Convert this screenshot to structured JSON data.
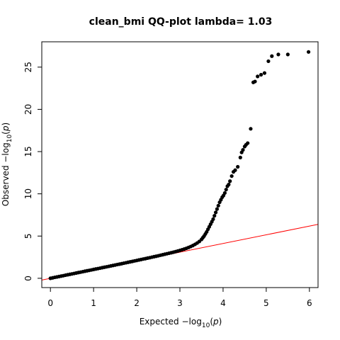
{
  "chart_data": {
    "type": "scatter",
    "title": "clean_bmi QQ-plot lambda= 1.03",
    "xlabel": {
      "prefix": "Expected  ",
      "math": "−log",
      "subscript": "10",
      "open": "(",
      "var": "p",
      "close": ")"
    },
    "ylabel": {
      "prefix": "Observed  ",
      "math": "−log",
      "subscript": "10",
      "open": "(",
      "var": "p",
      "close": ")"
    },
    "xlim": [
      -0.2,
      6.2
    ],
    "ylim": [
      -1.1,
      28.0
    ],
    "xticks": [
      "0",
      "1",
      "2",
      "3",
      "4",
      "5",
      "6"
    ],
    "yticks": [
      "0",
      "5",
      "10",
      "15",
      "20",
      "25"
    ],
    "grid": false,
    "point_color": "#000000",
    "line_color": "#ff0000",
    "reference_line": {
      "slope": 1.03,
      "intercept": 0
    },
    "points": [
      [
        0.0,
        0.0
      ],
      [
        0.05,
        0.05
      ],
      [
        0.1,
        0.11
      ],
      [
        0.15,
        0.16
      ],
      [
        0.2,
        0.21
      ],
      [
        0.25,
        0.26
      ],
      [
        0.3,
        0.31
      ],
      [
        0.35,
        0.37
      ],
      [
        0.4,
        0.42
      ],
      [
        0.45,
        0.47
      ],
      [
        0.5,
        0.52
      ],
      [
        0.55,
        0.57
      ],
      [
        0.6,
        0.63
      ],
      [
        0.65,
        0.68
      ],
      [
        0.7,
        0.73
      ],
      [
        0.75,
        0.78
      ],
      [
        0.8,
        0.84
      ],
      [
        0.85,
        0.89
      ],
      [
        0.9,
        0.94
      ],
      [
        0.95,
        0.99
      ],
      [
        1.0,
        1.05
      ],
      [
        1.05,
        1.1
      ],
      [
        1.1,
        1.15
      ],
      [
        1.15,
        1.2
      ],
      [
        1.2,
        1.26
      ],
      [
        1.25,
        1.31
      ],
      [
        1.3,
        1.36
      ],
      [
        1.35,
        1.41
      ],
      [
        1.4,
        1.47
      ],
      [
        1.45,
        1.52
      ],
      [
        1.5,
        1.57
      ],
      [
        1.55,
        1.63
      ],
      [
        1.6,
        1.68
      ],
      [
        1.65,
        1.73
      ],
      [
        1.7,
        1.79
      ],
      [
        1.75,
        1.84
      ],
      [
        1.8,
        1.9
      ],
      [
        1.85,
        1.95
      ],
      [
        1.9,
        2.0
      ],
      [
        1.95,
        2.06
      ],
      [
        2.0,
        2.11
      ],
      [
        2.05,
        2.17
      ],
      [
        2.1,
        2.22
      ],
      [
        2.15,
        2.28
      ],
      [
        2.2,
        2.33
      ],
      [
        2.25,
        2.39
      ],
      [
        2.3,
        2.44
      ],
      [
        2.35,
        2.5
      ],
      [
        2.4,
        2.56
      ],
      [
        2.45,
        2.61
      ],
      [
        2.5,
        2.67
      ],
      [
        2.55,
        2.73
      ],
      [
        2.6,
        2.79
      ],
      [
        2.65,
        2.85
      ],
      [
        2.7,
        2.91
      ],
      [
        2.75,
        2.97
      ],
      [
        2.8,
        3.03
      ],
      [
        2.85,
        3.09
      ],
      [
        2.9,
        3.16
      ],
      [
        2.95,
        3.23
      ],
      [
        3.0,
        3.3
      ],
      [
        3.05,
        3.38
      ],
      [
        3.1,
        3.46
      ],
      [
        3.15,
        3.55
      ],
      [
        3.2,
        3.65
      ],
      [
        3.25,
        3.76
      ],
      [
        3.3,
        3.88
      ],
      [
        3.35,
        4.02
      ],
      [
        3.4,
        4.18
      ],
      [
        3.45,
        4.36
      ],
      [
        3.5,
        4.6
      ],
      [
        3.53,
        4.8
      ],
      [
        3.56,
        5.0
      ],
      [
        3.59,
        5.25
      ],
      [
        3.62,
        5.5
      ],
      [
        3.65,
        5.8
      ],
      [
        3.68,
        6.1
      ],
      [
        3.71,
        6.4
      ],
      [
        3.74,
        6.7
      ],
      [
        3.77,
        7.0
      ],
      [
        3.8,
        7.4
      ],
      [
        3.83,
        7.8
      ],
      [
        3.86,
        8.2
      ],
      [
        3.89,
        8.6
      ],
      [
        3.92,
        9.0
      ],
      [
        3.95,
        9.3
      ],
      [
        3.98,
        9.6
      ],
      [
        4.01,
        9.8
      ],
      [
        4.04,
        10.1
      ],
      [
        4.07,
        10.5
      ],
      [
        4.1,
        10.9
      ],
      [
        4.13,
        11.1
      ],
      [
        4.16,
        11.5
      ],
      [
        4.2,
        12.1
      ],
      [
        4.24,
        12.6
      ],
      [
        4.28,
        12.8
      ],
      [
        4.34,
        13.2
      ],
      [
        4.4,
        14.3
      ],
      [
        4.43,
        14.9
      ],
      [
        4.46,
        15.2
      ],
      [
        4.5,
        15.6
      ],
      [
        4.53,
        15.8
      ],
      [
        4.57,
        16.0
      ],
      [
        4.64,
        17.7
      ],
      [
        4.7,
        23.2
      ],
      [
        4.74,
        23.3
      ],
      [
        4.8,
        23.9
      ],
      [
        4.88,
        24.1
      ],
      [
        4.96,
        24.3
      ],
      [
        5.05,
        25.7
      ],
      [
        5.13,
        26.3
      ],
      [
        5.28,
        26.5
      ],
      [
        5.5,
        26.5
      ],
      [
        5.98,
        26.8
      ]
    ]
  }
}
